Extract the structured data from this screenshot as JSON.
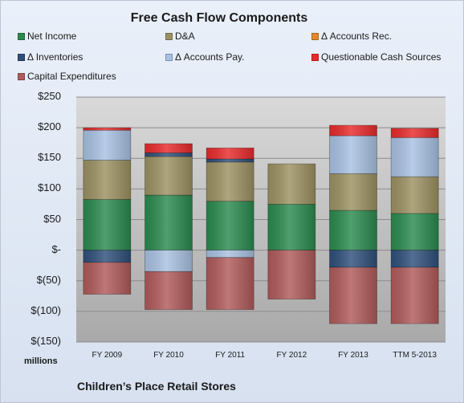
{
  "chart_data": {
    "type": "bar",
    "stacked": true,
    "title": "Free Cash Flow Components",
    "categories": [
      "FY 2009",
      "FY 2010",
      "FY 2011",
      "FY 2012",
      "FY 2013",
      "TTM 5-2013"
    ],
    "series": [
      {
        "name": "Net Income",
        "color": "#2a8a4e",
        "values": [
          83,
          90,
          80,
          75,
          65,
          60
        ]
      },
      {
        "name": "D&A",
        "color": "#9c9162",
        "values": [
          64,
          63,
          64,
          66,
          60,
          60
        ]
      },
      {
        "name": "Δ Accounts Rec.",
        "color": "#e08a2c",
        "values": [
          0,
          0,
          0,
          0,
          0,
          0
        ]
      },
      {
        "name": "Δ Inventories",
        "color": "#2e4f7a",
        "values": [
          -20,
          6,
          5,
          0,
          -28,
          -28
        ]
      },
      {
        "name": "Δ Accounts Pay.",
        "color": "#a8c1e2",
        "values": [
          49,
          -35,
          -12,
          0,
          62,
          64
        ]
      },
      {
        "name": "Questionable Cash Sources",
        "color": "#e82a2a",
        "values": [
          4,
          15,
          18,
          0,
          17,
          15
        ]
      },
      {
        "name": "Capital Expenditures",
        "color": "#b05a5a",
        "values": [
          -52,
          -62,
          -85,
          -80,
          -92,
          -92
        ]
      }
    ],
    "ylim": [
      -150,
      250
    ],
    "yticks": [
      250,
      200,
      150,
      100,
      50,
      0,
      -50,
      -100,
      -150
    ],
    "ytick_labels": [
      "$250",
      "$200",
      "$150",
      "$100",
      "$50",
      "$-",
      "$(50)",
      "$(100)",
      "$(150)"
    ],
    "xlabel": "",
    "ylabel": "",
    "units_label": "millions",
    "grid": true,
    "legend_position": "top"
  },
  "company_label": "Children’s Place Retail Stores"
}
